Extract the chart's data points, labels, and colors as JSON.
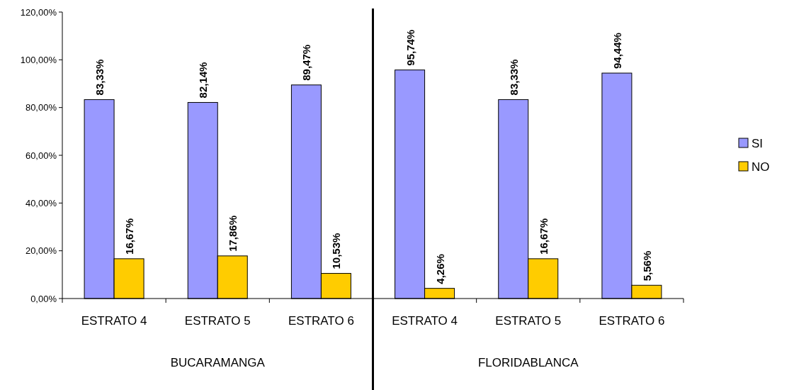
{
  "chart_data": {
    "type": "bar",
    "categories": [
      "ESTRATO 4",
      "ESTRATO 5",
      "ESTRATO 6",
      "ESTRATO 4",
      "ESTRATO 5",
      "ESTRATO 6"
    ],
    "series": [
      {
        "name": "SI",
        "color": "#9999ff",
        "values": [
          83.33,
          82.14,
          89.47,
          95.74,
          83.33,
          94.44
        ],
        "value_labels": [
          "83,33%",
          "82,14%",
          "89,47%",
          "95,74%",
          "83,33%",
          "94,44%"
        ]
      },
      {
        "name": "NO",
        "color": "#ffcc00",
        "values": [
          16.67,
          17.86,
          10.53,
          4.26,
          16.67,
          5.56
        ],
        "value_labels": [
          "16,67%",
          "17,86%",
          "10,53%",
          "4,26%",
          "16,67%",
          "5,56%"
        ]
      }
    ],
    "ylim": [
      0,
      120
    ],
    "yticks": [
      {
        "value": 0,
        "label": "0,00%"
      },
      {
        "value": 20,
        "label": "20,00%"
      },
      {
        "value": 40,
        "label": "40,00%"
      },
      {
        "value": 60,
        "label": "60,00%"
      },
      {
        "value": 80,
        "label": "80,00%"
      },
      {
        "value": 100,
        "label": "100,00%"
      },
      {
        "value": 120,
        "label": "120,00%"
      }
    ],
    "annotations": [
      "BUCARAMANGA",
      "FLORIDABLANCA"
    ],
    "grid": false,
    "legend": "right"
  }
}
